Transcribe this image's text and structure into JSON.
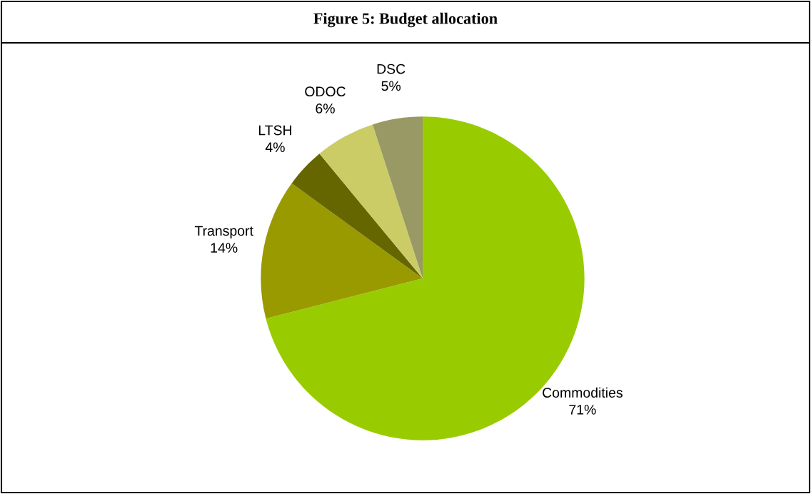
{
  "chart_data": {
    "type": "pie",
    "title": "Figure 5: Budget allocation",
    "categories": [
      "Commodities",
      "Transport",
      "LTSH",
      "ODOC",
      "DSC"
    ],
    "values": [
      71,
      14,
      4,
      6,
      5
    ],
    "value_labels": [
      "71%",
      "14%",
      "4%",
      "6%",
      "5%"
    ],
    "colors": [
      "#99cc00",
      "#999900",
      "#666600",
      "#cccc66",
      "#999966"
    ]
  }
}
